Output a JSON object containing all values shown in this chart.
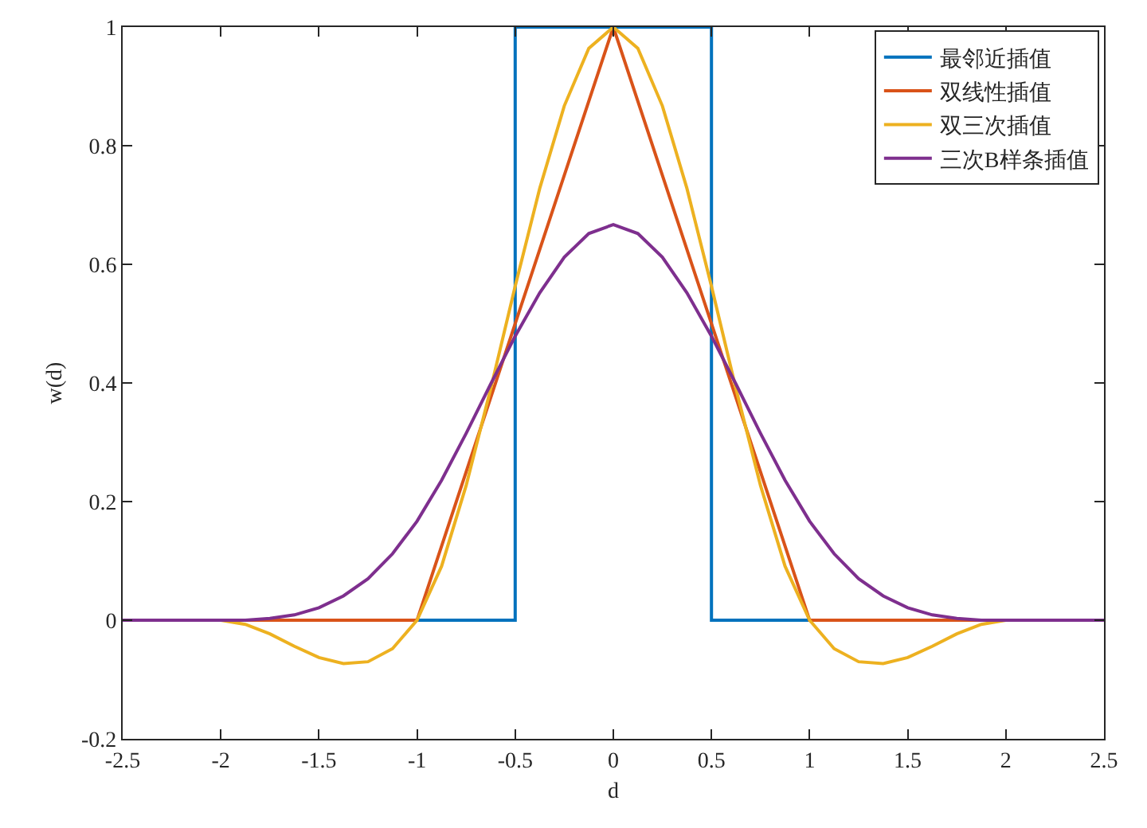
{
  "chart_data": {
    "type": "line",
    "xlabel": "d",
    "ylabel": "w(d)",
    "xlim": [
      -2.5,
      2.5
    ],
    "xticks": [
      -2.5,
      -2,
      -1.5,
      -1,
      -0.5,
      0,
      0.5,
      1,
      1.5,
      2,
      2.5
    ],
    "ylim": [
      -0.2,
      1
    ],
    "yticks": [
      -0.2,
      0,
      0.2,
      0.4,
      0.6,
      0.8,
      1
    ],
    "grid": false,
    "legend": "top right",
    "marker": "none",
    "line_style": "solid",
    "series": [
      {
        "name": "最邻近插值",
        "color": "#0072bd",
        "x": [
          -2.5,
          -0.5,
          -0.5,
          0.5,
          0.5,
          2.5
        ],
        "values": [
          0,
          0,
          1,
          1,
          0,
          0
        ]
      },
      {
        "name": "双线性插值",
        "color": "#d95319",
        "x": [
          -2.5,
          -1,
          0,
          1,
          2.5
        ],
        "values": [
          0,
          0,
          1,
          0,
          0
        ]
      },
      {
        "name": "双三次插值",
        "color": "#edb120",
        "x": [
          -2.5,
          -2,
          -1.875,
          -1.75,
          -1.625,
          -1.5,
          -1.375,
          -1.25,
          -1.125,
          -1,
          -0.875,
          -0.75,
          -0.625,
          -0.5,
          -0.375,
          -0.25,
          -0.125,
          0,
          0.125,
          0.25,
          0.375,
          0.5,
          0.625,
          0.75,
          0.875,
          1,
          1.125,
          1.25,
          1.375,
          1.5,
          1.625,
          1.75,
          1.875,
          2,
          2.5
        ],
        "values": [
          0,
          0,
          -0.007,
          -0.023,
          -0.044,
          -0.063,
          -0.073,
          -0.07,
          -0.048,
          0,
          0.091,
          0.227,
          0.39,
          0.563,
          0.728,
          0.867,
          0.964,
          1,
          0.964,
          0.867,
          0.728,
          0.563,
          0.39,
          0.227,
          0.091,
          0,
          -0.048,
          -0.07,
          -0.073,
          -0.063,
          -0.044,
          -0.023,
          -0.007,
          0,
          0
        ]
      },
      {
        "name": "三次B样条插值",
        "color": "#7e2f8e",
        "x": [
          -2.5,
          -2,
          -1.875,
          -1.75,
          -1.625,
          -1.5,
          -1.375,
          -1.25,
          -1.125,
          -1,
          -0.875,
          -0.75,
          -0.625,
          -0.5,
          -0.375,
          -0.25,
          -0.125,
          0,
          0.125,
          0.25,
          0.375,
          0.5,
          0.625,
          0.75,
          0.875,
          1,
          1.125,
          1.25,
          1.375,
          1.5,
          1.625,
          1.75,
          1.875,
          2,
          2.5
        ],
        "values": [
          0,
          0,
          0,
          0.003,
          0.009,
          0.021,
          0.041,
          0.07,
          0.112,
          0.167,
          0.236,
          0.315,
          0.398,
          0.479,
          0.552,
          0.612,
          0.652,
          0.667,
          0.652,
          0.612,
          0.552,
          0.479,
          0.398,
          0.315,
          0.236,
          0.167,
          0.112,
          0.07,
          0.041,
          0.021,
          0.009,
          0.003,
          0,
          0,
          0
        ]
      }
    ]
  }
}
